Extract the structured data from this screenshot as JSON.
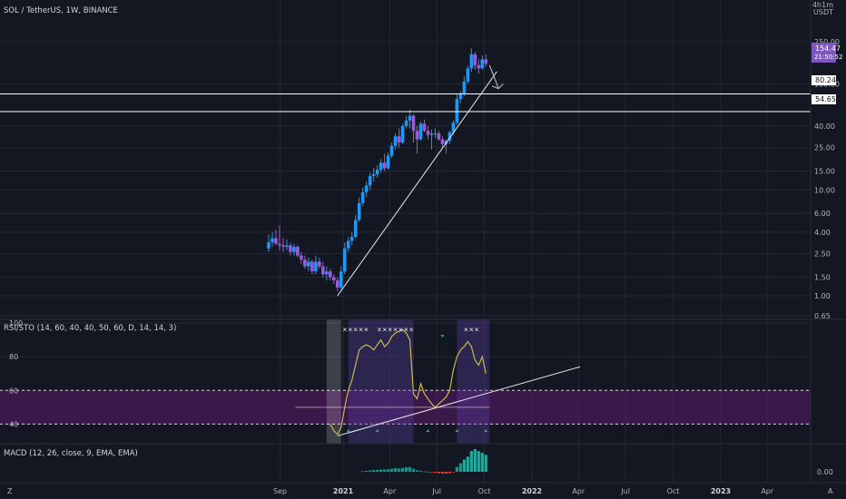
{
  "header": {
    "symbol_title": "SOL / TetherUS, 1W, BINANCE",
    "currency": "USDT",
    "corner_menu": "4h1m"
  },
  "colors": {
    "background": "#131722",
    "grid": "#232836",
    "candle_up": "#2196f3",
    "candle_down": "#9c5bd6",
    "price_badge": "#7e57c2",
    "rsi_line": "#c9b84a",
    "trendline": "#e8e8e8",
    "zone": "#5b1a6b",
    "macd_hist_up": "#26a69a",
    "macd_hist_down": "#ef5350"
  },
  "chart_data": [
    {
      "type": "candlestick",
      "panel": "price",
      "scale": "log",
      "ylim": [
        0.65,
        400
      ],
      "y_ticks": [
        "250.00",
        "100.00",
        "40.00",
        "25.00",
        "15.00",
        "10.00",
        "6.00",
        "4.00",
        "2.50",
        "1.50",
        "1.00",
        "0.65"
      ],
      "x_ticks": [
        "Sep",
        "2021",
        "Apr",
        "Jul",
        "Oct",
        "2022",
        "Apr",
        "Jul",
        "Oct",
        "2023",
        "Apr"
      ],
      "x_start": "2020-08-10",
      "x_end": "2023-06-01",
      "last_price": "154.47",
      "countdown": "21:50:52",
      "horizontal_lines": [
        {
          "value": 80.24,
          "label": "80.24"
        },
        {
          "value": 54.65,
          "label": "54.65"
        }
      ],
      "trendlines": [
        {
          "from": [
            "2020-12-21",
            1.0
          ],
          "to": [
            "2021-10-25",
            130
          ]
        }
      ],
      "candles": [
        {
          "date": "2020-08-10",
          "o": 2.8,
          "h": 3.8,
          "l": 2.6,
          "c": 3.2
        },
        {
          "date": "2020-08-17",
          "o": 3.2,
          "h": 4.0,
          "l": 2.9,
          "c": 3.5
        },
        {
          "date": "2020-08-24",
          "o": 3.5,
          "h": 4.2,
          "l": 3.0,
          "c": 3.1
        },
        {
          "date": "2020-08-31",
          "o": 3.1,
          "h": 4.6,
          "l": 2.7,
          "c": 3.0
        },
        {
          "date": "2020-09-07",
          "o": 3.0,
          "h": 3.5,
          "l": 2.6,
          "c": 2.9
        },
        {
          "date": "2020-09-14",
          "o": 2.9,
          "h": 3.4,
          "l": 2.7,
          "c": 3.0
        },
        {
          "date": "2020-09-21",
          "o": 3.0,
          "h": 3.2,
          "l": 2.4,
          "c": 2.6
        },
        {
          "date": "2020-09-28",
          "o": 2.6,
          "h": 3.1,
          "l": 2.4,
          "c": 2.9
        },
        {
          "date": "2020-10-05",
          "o": 2.9,
          "h": 3.0,
          "l": 2.3,
          "c": 2.4
        },
        {
          "date": "2020-10-12",
          "o": 2.4,
          "h": 2.6,
          "l": 2.0,
          "c": 2.2
        },
        {
          "date": "2020-10-19",
          "o": 2.2,
          "h": 2.4,
          "l": 1.8,
          "c": 1.9
        },
        {
          "date": "2020-10-26",
          "o": 1.9,
          "h": 2.3,
          "l": 1.7,
          "c": 2.1
        },
        {
          "date": "2020-11-02",
          "o": 2.1,
          "h": 2.2,
          "l": 1.6,
          "c": 1.7
        },
        {
          "date": "2020-11-09",
          "o": 1.7,
          "h": 2.4,
          "l": 1.6,
          "c": 2.1
        },
        {
          "date": "2020-11-16",
          "o": 2.1,
          "h": 2.3,
          "l": 1.8,
          "c": 1.9
        },
        {
          "date": "2020-11-23",
          "o": 1.9,
          "h": 2.1,
          "l": 1.5,
          "c": 1.6
        },
        {
          "date": "2020-11-30",
          "o": 1.6,
          "h": 1.9,
          "l": 1.4,
          "c": 1.7
        },
        {
          "date": "2020-12-07",
          "o": 1.7,
          "h": 1.8,
          "l": 1.4,
          "c": 1.5
        },
        {
          "date": "2020-12-14",
          "o": 1.5,
          "h": 1.6,
          "l": 1.3,
          "c": 1.4
        },
        {
          "date": "2020-12-21",
          "o": 1.4,
          "h": 1.5,
          "l": 1.1,
          "c": 1.2
        },
        {
          "date": "2020-12-28",
          "o": 1.2,
          "h": 1.9,
          "l": 1.15,
          "c": 1.7
        },
        {
          "date": "2021-01-04",
          "o": 1.7,
          "h": 3.2,
          "l": 1.6,
          "c": 2.8
        },
        {
          "date": "2021-01-11",
          "o": 2.8,
          "h": 3.6,
          "l": 2.6,
          "c": 3.3
        },
        {
          "date": "2021-01-18",
          "o": 3.3,
          "h": 4.0,
          "l": 3.0,
          "c": 3.6
        },
        {
          "date": "2021-01-25",
          "o": 3.6,
          "h": 5.8,
          "l": 3.5,
          "c": 5.2
        },
        {
          "date": "2021-02-01",
          "o": 5.2,
          "h": 8.5,
          "l": 5.0,
          "c": 7.5
        },
        {
          "date": "2021-02-08",
          "o": 7.5,
          "h": 10.5,
          "l": 7.0,
          "c": 9.5
        },
        {
          "date": "2021-02-15",
          "o": 9.5,
          "h": 12.0,
          "l": 8.5,
          "c": 11.0
        },
        {
          "date": "2021-02-22",
          "o": 11.0,
          "h": 14.5,
          "l": 10.0,
          "c": 13.5
        },
        {
          "date": "2021-03-01",
          "o": 13.5,
          "h": 16.0,
          "l": 12.0,
          "c": 14.0
        },
        {
          "date": "2021-03-08",
          "o": 14.0,
          "h": 17.0,
          "l": 13.0,
          "c": 15.5
        },
        {
          "date": "2021-03-15",
          "o": 15.5,
          "h": 19.5,
          "l": 14.5,
          "c": 18.0
        },
        {
          "date": "2021-03-22",
          "o": 18.0,
          "h": 22.0,
          "l": 15.0,
          "c": 16.0
        },
        {
          "date": "2021-03-29",
          "o": 16.0,
          "h": 22.5,
          "l": 15.5,
          "c": 21.0
        },
        {
          "date": "2021-04-05",
          "o": 21.0,
          "h": 28.0,
          "l": 20.0,
          "c": 26.0
        },
        {
          "date": "2021-04-12",
          "o": 26.0,
          "h": 34.0,
          "l": 24.0,
          "c": 32.0
        },
        {
          "date": "2021-04-19",
          "o": 32.0,
          "h": 38.0,
          "l": 25.0,
          "c": 28.0
        },
        {
          "date": "2021-04-26",
          "o": 28.0,
          "h": 42.0,
          "l": 27.0,
          "c": 40.0
        },
        {
          "date": "2021-05-03",
          "o": 40.0,
          "h": 50.0,
          "l": 38.0,
          "c": 45.0
        },
        {
          "date": "2021-05-10",
          "o": 45.0,
          "h": 57.0,
          "l": 38.0,
          "c": 50.0
        },
        {
          "date": "2021-05-17",
          "o": 50.0,
          "h": 52.0,
          "l": 28.0,
          "c": 36.0
        },
        {
          "date": "2021-05-24",
          "o": 36.0,
          "h": 40.0,
          "l": 22.0,
          "c": 30.0
        },
        {
          "date": "2021-05-31",
          "o": 30.0,
          "h": 44.0,
          "l": 29.0,
          "c": 42.0
        },
        {
          "date": "2021-06-07",
          "o": 42.0,
          "h": 46.0,
          "l": 35.0,
          "c": 36.0
        },
        {
          "date": "2021-06-14",
          "o": 36.0,
          "h": 40.0,
          "l": 30.0,
          "c": 33.0
        },
        {
          "date": "2021-06-21",
          "o": 33.0,
          "h": 37.0,
          "l": 24.0,
          "c": 34.0
        },
        {
          "date": "2021-06-28",
          "o": 34.0,
          "h": 38.0,
          "l": 31.0,
          "c": 34.0
        },
        {
          "date": "2021-07-05",
          "o": 34.0,
          "h": 36.0,
          "l": 29.0,
          "c": 30.0
        },
        {
          "date": "2021-07-12",
          "o": 30.0,
          "h": 32.0,
          "l": 25.0,
          "c": 27.0
        },
        {
          "date": "2021-07-19",
          "o": 27.0,
          "h": 30.0,
          "l": 22.0,
          "c": 29.0
        },
        {
          "date": "2021-07-26",
          "o": 29.0,
          "h": 36.0,
          "l": 27.0,
          "c": 35.0
        },
        {
          "date": "2021-08-02",
          "o": 35.0,
          "h": 45.0,
          "l": 33.0,
          "c": 43.0
        },
        {
          "date": "2021-08-09",
          "o": 43.0,
          "h": 80.0,
          "l": 41.0,
          "c": 72.0
        },
        {
          "date": "2021-08-16",
          "o": 72.0,
          "h": 85.0,
          "l": 66.0,
          "c": 80.0
        },
        {
          "date": "2021-08-23",
          "o": 80.0,
          "h": 118.0,
          "l": 76.0,
          "c": 105.0
        },
        {
          "date": "2021-08-30",
          "o": 105.0,
          "h": 148.0,
          "l": 100.0,
          "c": 140.0
        },
        {
          "date": "2021-09-06",
          "o": 140.0,
          "h": 216.0,
          "l": 130.0,
          "c": 190.0
        },
        {
          "date": "2021-09-13",
          "o": 190.0,
          "h": 200.0,
          "l": 135.0,
          "c": 150.0
        },
        {
          "date": "2021-09-20",
          "o": 150.0,
          "h": 170.0,
          "l": 125.0,
          "c": 140.0
        },
        {
          "date": "2021-09-27",
          "o": 140.0,
          "h": 185.0,
          "l": 135.0,
          "c": 170.0
        },
        {
          "date": "2021-10-04",
          "o": 170.0,
          "h": 190.0,
          "l": 145.0,
          "c": 154.47
        }
      ]
    },
    {
      "type": "line",
      "panel": "rsi",
      "title": "RSI/STO (14, 60, 40, 40, 50, 60, D, 14, 14, 3)",
      "ylim": [
        30,
        100
      ],
      "y_ticks": [
        "100",
        "80",
        "60",
        "40"
      ],
      "levels": [
        60,
        40
      ],
      "signal_marks": [
        "×××××",
        "×××××××",
        "×××"
      ],
      "series": [
        {
          "dates": [
            "2020-12-07",
            "2020-12-14",
            "2020-12-21",
            "2020-12-28",
            "2021-01-04",
            "2021-01-11",
            "2021-01-18",
            "2021-01-25",
            "2021-02-01",
            "2021-02-08",
            "2021-02-15",
            "2021-02-22",
            "2021-03-01",
            "2021-03-08",
            "2021-03-15",
            "2021-03-22",
            "2021-03-29",
            "2021-04-05",
            "2021-04-12",
            "2021-04-19",
            "2021-04-26",
            "2021-05-03",
            "2021-05-10",
            "2021-05-17",
            "2021-05-24",
            "2021-05-31",
            "2021-06-07",
            "2021-06-14",
            "2021-06-21",
            "2021-06-28",
            "2021-07-05",
            "2021-07-12",
            "2021-07-19",
            "2021-07-26",
            "2021-08-02",
            "2021-08-09",
            "2021-08-16",
            "2021-08-23",
            "2021-08-30",
            "2021-09-06",
            "2021-09-13",
            "2021-09-20",
            "2021-09-27",
            "2021-10-04"
          ],
          "values": [
            40,
            36,
            34,
            38,
            50,
            60,
            66,
            75,
            84,
            86,
            87,
            86,
            84,
            87,
            90,
            86,
            88,
            92,
            94,
            95,
            96,
            94,
            90,
            58,
            55,
            64,
            58,
            55,
            52,
            50,
            52,
            54,
            56,
            60,
            72,
            80,
            84,
            86,
            89,
            86,
            78,
            75,
            80,
            70
          ]
        }
      ],
      "trendlines": [
        {
          "from": [
            "2020-12-21",
            33
          ],
          "to": [
            "2022-04-04",
            74
          ]
        }
      ]
    },
    {
      "type": "bar",
      "panel": "macd",
      "title": "MACD (12, 26, close, 9, EMA, EMA)",
      "y_ticks": [
        "0.00"
      ],
      "dates": [
        "2021-02-08",
        "2021-02-15",
        "2021-02-22",
        "2021-03-01",
        "2021-03-08",
        "2021-03-15",
        "2021-03-22",
        "2021-03-29",
        "2021-04-05",
        "2021-04-12",
        "2021-04-19",
        "2021-04-26",
        "2021-05-03",
        "2021-05-10",
        "2021-05-17",
        "2021-05-24",
        "2021-05-31",
        "2021-06-07",
        "2021-06-14",
        "2021-06-21",
        "2021-06-28",
        "2021-07-05",
        "2021-07-12",
        "2021-07-19",
        "2021-07-26",
        "2021-08-02",
        "2021-08-09",
        "2021-08-16",
        "2021-08-23",
        "2021-08-30",
        "2021-09-06",
        "2021-09-13",
        "2021-09-20",
        "2021-09-27",
        "2021-10-04"
      ],
      "values": [
        0.3,
        0.5,
        0.7,
        0.9,
        1.0,
        1.2,
        1.2,
        1.3,
        1.6,
        1.9,
        1.7,
        2.0,
        2.4,
        2.5,
        1.6,
        0.8,
        0.5,
        0.2,
        0.1,
        -0.3,
        -0.5,
        -0.8,
        -0.9,
        -1.0,
        -0.7,
        -0.3,
        2.5,
        4.5,
        6.5,
        8.0,
        11.0,
        12.0,
        11.0,
        10.0,
        9.0
      ]
    }
  ],
  "bottom_left_label": "Z",
  "bottom_right_label": "A"
}
